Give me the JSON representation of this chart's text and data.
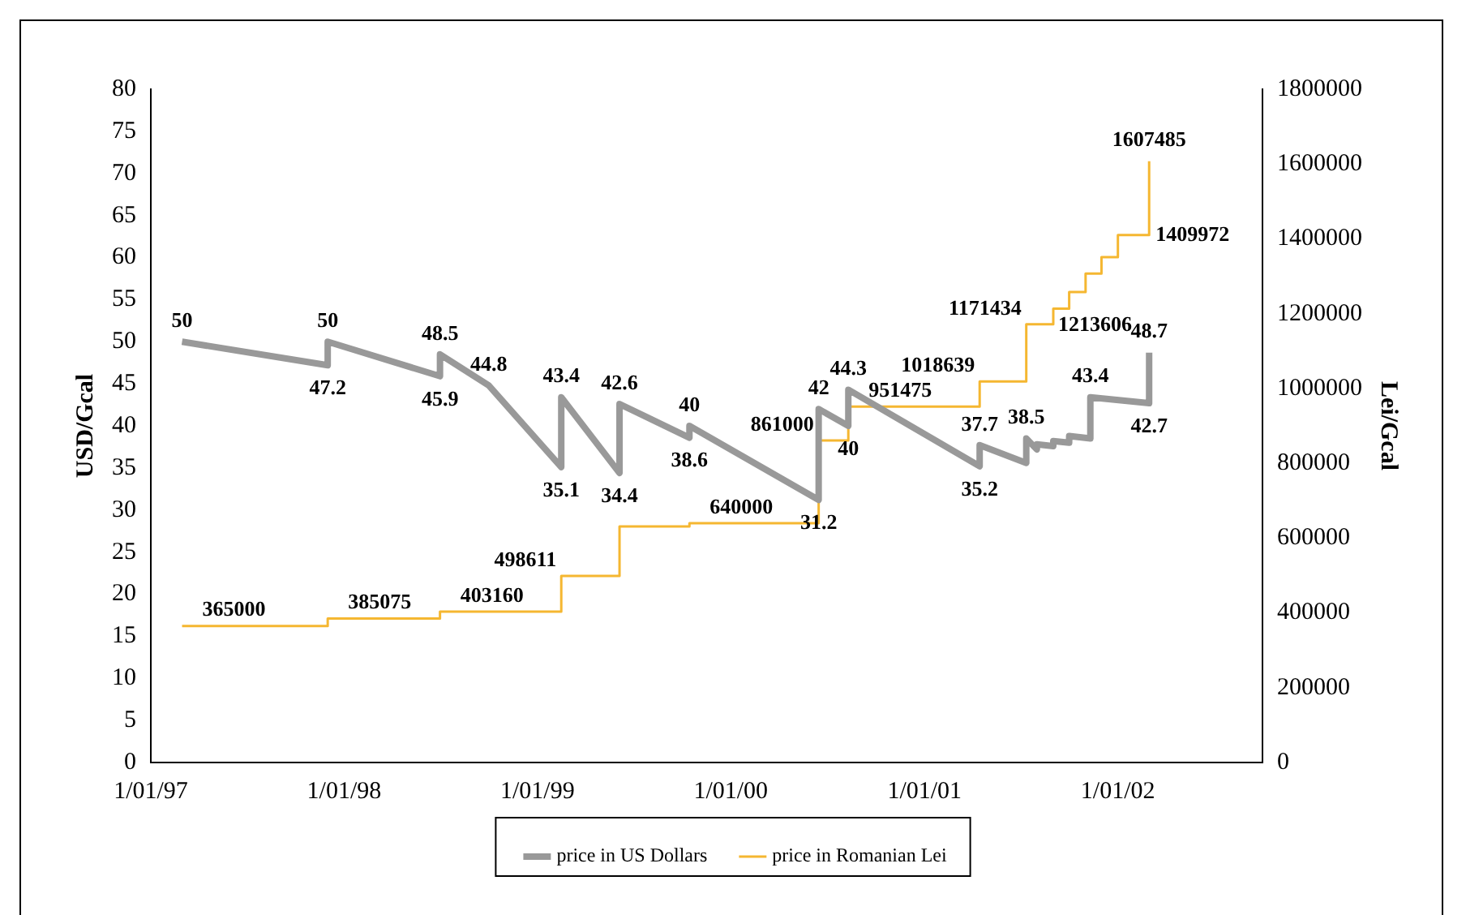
{
  "chart_data": {
    "type": "line",
    "ylabel": "USD/Gcal",
    "y2label": "Lei/Gcal",
    "xlim": [
      "1997-01-01",
      "2002-10-01"
    ],
    "xticks": [
      {
        "value": "1997-01-01",
        "label": "1/01/97"
      },
      {
        "value": "1998-01-01",
        "label": "1/01/98"
      },
      {
        "value": "1999-01-01",
        "label": "1/01/99"
      },
      {
        "value": "2000-01-01",
        "label": "1/01/00"
      },
      {
        "value": "2001-01-01",
        "label": "1/01/01"
      },
      {
        "value": "2002-01-01",
        "label": "1/01/02"
      }
    ],
    "ylim": [
      0,
      80
    ],
    "yticks": [
      0,
      5,
      10,
      15,
      20,
      25,
      30,
      35,
      40,
      45,
      50,
      55,
      60,
      65,
      70,
      75,
      80
    ],
    "y2lim": [
      0,
      1800000
    ],
    "y2ticks": [
      0,
      200000,
      400000,
      600000,
      800000,
      1000000,
      1200000,
      1400000,
      1600000,
      1800000
    ],
    "grid": false,
    "legend": "bottom",
    "marker": "none",
    "line_style": "solid",
    "series": [
      {
        "name": "price in US Dollars",
        "type": "line",
        "color": "#999999",
        "x": [
          "1997-03-01",
          "1997-12-01",
          "1997-12-01",
          "1998-07-01",
          "1998-07-01",
          "1998-10-01",
          "1999-02-15",
          "1999-02-15",
          "1999-06-05",
          "1999-06-05",
          "1999-10-15",
          "1999-10-15",
          "2000-06-15",
          "2000-06-15",
          "2000-08-10",
          "2000-08-10",
          "2001-04-15",
          "2001-04-15",
          "2001-07-12",
          "2001-07-12",
          "2001-08-01",
          "2001-08-01",
          "2001-09-01",
          "2001-09-01",
          "2001-10-01",
          "2001-10-01",
          "2001-11-10",
          "2001-11-10",
          "2002-03-01",
          "2002-03-01"
        ],
        "values": [
          50,
          47.2,
          50,
          45.9,
          48.5,
          44.8,
          35.1,
          43.4,
          34.4,
          42.6,
          38.6,
          40,
          31.2,
          42,
          40,
          44.3,
          35.2,
          37.7,
          35.6,
          38.5,
          37.2,
          37.8,
          37.6,
          38.2,
          38.0,
          38.8,
          38.5,
          43.4,
          42.7,
          48.7
        ],
        "value_labels": [
          "50",
          "47.2",
          "50",
          "45.9",
          "48.5",
          "44.8",
          "35.1",
          "43.4",
          "34.4",
          "42.6",
          "38.6",
          "40",
          "31.2",
          "42",
          "40",
          "44.3",
          "35.2",
          "37.7",
          null,
          "38.5",
          null,
          null,
          null,
          null,
          null,
          null,
          null,
          "43.4",
          "42.7",
          "48.7"
        ]
      },
      {
        "name": "price in Romanian Lei",
        "type": "step",
        "axis": "y2",
        "color": "#f5b731",
        "x": [
          "1997-03-01",
          "1997-12-01",
          "1998-07-01",
          "1999-02-15",
          "1999-06-05",
          "1999-10-15",
          "2000-06-15",
          "2000-08-10",
          "2001-04-15",
          "2001-07-12",
          "2001-09-01",
          "2001-10-01",
          "2001-11-01",
          "2001-12-01",
          "2002-01-01",
          "2002-03-01"
        ],
        "values": [
          365000,
          385075,
          403160,
          498611,
          631000,
          640000,
          861000,
          951475,
          1018639,
          1171434,
          1213606,
          1258000,
          1307000,
          1351000,
          1409972,
          1607485
        ],
        "value_labels": [
          "365000",
          "385075",
          "403160",
          "498611",
          null,
          "640000",
          "861000",
          "951475",
          "1018639",
          "1171434",
          "1213606",
          null,
          null,
          null,
          "1409972",
          "1607485"
        ]
      }
    ]
  }
}
